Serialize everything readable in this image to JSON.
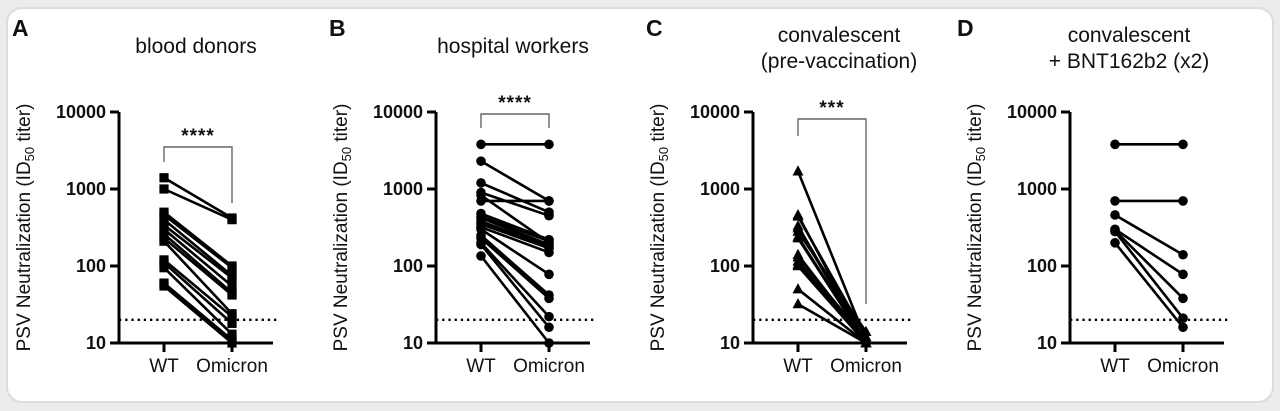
{
  "figure": {
    "panels": [
      {
        "letter": "A",
        "title_lines": [
          "blood donors"
        ]
      },
      {
        "letter": "B",
        "title_lines": [
          "hospital workers"
        ]
      },
      {
        "letter": "C",
        "title_lines": [
          "convalescent",
          "(pre-vaccination)"
        ]
      },
      {
        "letter": "D",
        "title_lines": [
          "convalescent",
          "+ BNT162b2 (x2)"
        ]
      }
    ],
    "axis": {
      "y_label": {
        "prefix": "PSV Neutralization (ID",
        "sub": "50",
        "suffix": " titer)"
      },
      "y_tick_labels": [
        "10",
        "100",
        "1000",
        "10000"
      ],
      "x_tick_labels": [
        "WT",
        "Omicron"
      ],
      "y_scale": "log",
      "y_limits": [
        10,
        10000
      ],
      "detection_threshold": 20
    },
    "colors": {
      "ink": "#000000",
      "text": "#1c1c1c",
      "bracket": "#666666",
      "card_background": "#ffffff",
      "card_border": "#dcdcdc",
      "page_background": "#ececec"
    }
  },
  "chart_data": [
    {
      "type": "line",
      "title": "blood donors",
      "categories": [
        "WT",
        "Omicron"
      ],
      "marker": "square",
      "significance": "****",
      "ylabel": "PSV Neutralization (ID50 titer)",
      "yscale": "log",
      "ylim": [
        10,
        10000
      ],
      "threshold": 20,
      "pairs": [
        [
          1400,
          420
        ],
        [
          1000,
          400
        ],
        [
          500,
          100
        ],
        [
          460,
          95
        ],
        [
          400,
          75
        ],
        [
          340,
          70
        ],
        [
          300,
          55
        ],
        [
          260,
          45
        ],
        [
          230,
          42
        ],
        [
          210,
          24
        ],
        [
          120,
          22
        ],
        [
          110,
          18
        ],
        [
          95,
          13
        ],
        [
          60,
          11
        ],
        [
          55,
          10
        ]
      ]
    },
    {
      "type": "line",
      "title": "hospital workers",
      "categories": [
        "WT",
        "Omicron"
      ],
      "marker": "circle",
      "significance": "****",
      "ylabel": "PSV Neutralization (ID50 titer)",
      "yscale": "log",
      "ylim": [
        10,
        10000
      ],
      "threshold": 20,
      "pairs": [
        [
          3800,
          3800
        ],
        [
          2300,
          700
        ],
        [
          1200,
          500
        ],
        [
          900,
          450
        ],
        [
          830,
          200
        ],
        [
          700,
          700
        ],
        [
          480,
          220
        ],
        [
          440,
          210
        ],
        [
          420,
          190
        ],
        [
          380,
          180
        ],
        [
          350,
          170
        ],
        [
          320,
          150
        ],
        [
          300,
          78
        ],
        [
          250,
          42
        ],
        [
          230,
          38
        ],
        [
          200,
          22
        ],
        [
          190,
          16
        ],
        [
          135,
          10
        ]
      ]
    },
    {
      "type": "line",
      "title": "convalescent (pre-vaccination)",
      "categories": [
        "WT",
        "Omicron"
      ],
      "marker": "triangle",
      "significance": "***",
      "ylabel": "PSV Neutralization (ID50 titer)",
      "yscale": "log",
      "ylim": [
        10,
        10000
      ],
      "threshold": 20,
      "pairs": [
        [
          1700,
          11
        ],
        [
          460,
          10
        ],
        [
          440,
          12
        ],
        [
          330,
          10
        ],
        [
          310,
          10
        ],
        [
          280,
          14
        ],
        [
          240,
          10
        ],
        [
          230,
          10
        ],
        [
          140,
          10
        ],
        [
          130,
          11
        ],
        [
          115,
          10
        ],
        [
          105,
          10
        ],
        [
          100,
          10
        ],
        [
          50,
          10
        ],
        [
          32,
          10
        ]
      ]
    },
    {
      "type": "line",
      "title": "convalescent + BNT162b2 (x2)",
      "categories": [
        "WT",
        "Omicron"
      ],
      "marker": "circle",
      "significance": null,
      "ylabel": "PSV Neutralization (ID50 titer)",
      "yscale": "log",
      "ylim": [
        10,
        10000
      ],
      "threshold": 20,
      "pairs": [
        [
          3800,
          3800
        ],
        [
          700,
          700
        ],
        [
          460,
          140
        ],
        [
          300,
          78
        ],
        [
          290,
          38
        ],
        [
          280,
          21
        ],
        [
          200,
          16
        ]
      ]
    }
  ]
}
